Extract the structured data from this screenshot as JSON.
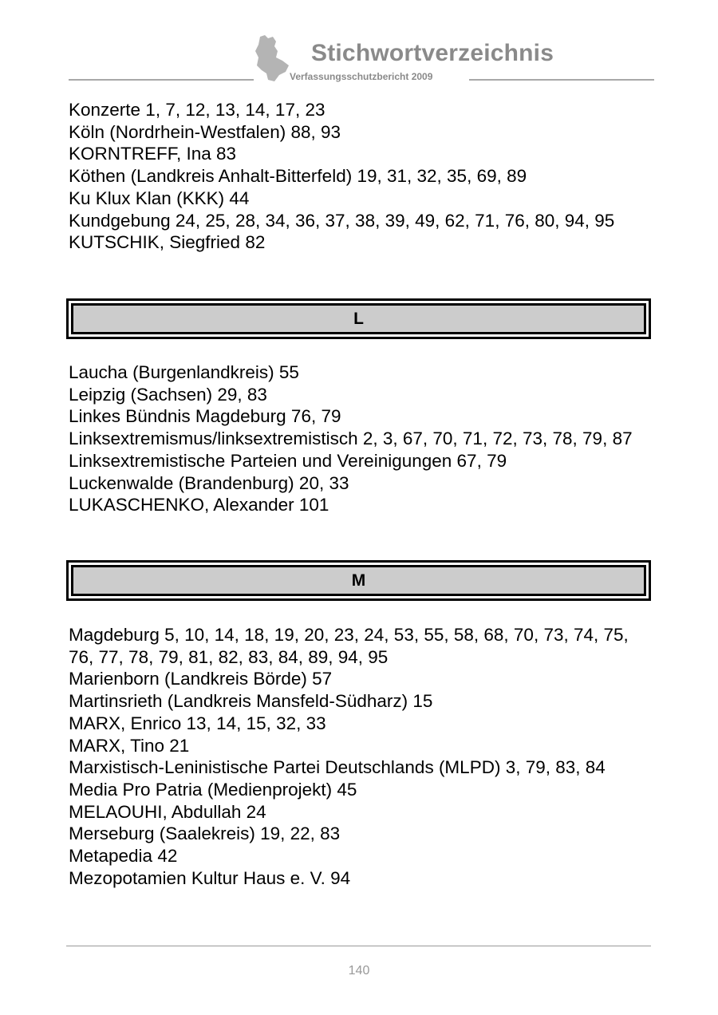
{
  "header": {
    "title": "Stichwortverzeichnis",
    "subtitle": "Verfassungsschutzbericht  2009"
  },
  "sections": [
    {
      "letter": "",
      "entries": [
        "Konzerte   1, 7, 12, 13, 14, 17, 23",
        "Köln (Nordrhein-Westfalen)   88, 93",
        "KORNTREFF, Ina   83",
        "Köthen (Landkreis Anhalt-Bitterfeld)   19, 31, 32, 35, 69, 89",
        "Ku Klux Klan (KKK)   44",
        "Kundgebung   24, 25, 28, 34, 36, 37, 38, 39, 49, 62, 71, 76, 80, 94, 95",
        "KUTSCHIK, Siegfried   82"
      ]
    },
    {
      "letter": "L",
      "entries": [
        "Laucha (Burgenlandkreis)   55",
        "Leipzig (Sachsen)   29, 83",
        "Linkes Bündnis Magdeburg   76, 79",
        "Linksextremismus/linksextremistisch   2, 3, 67, 70, 71, 72, 73, 78, 79, 87",
        "Linksextremistische Parteien und Vereinigungen   67, 79",
        "Luckenwalde (Brandenburg)   20, 33",
        "LUKASCHENKO, Alexander   101"
      ]
    },
    {
      "letter": "M",
      "entries": [
        "Magdeburg   5, 10, 14, 18, 19, 20, 23, 24, 53, 55, 58, 68, 70, 73, 74, 75, 76, 77, 78, 79, 81, 82, 83, 84, 89, 94, 95",
        "Marienborn (Landkreis Börde)   57",
        "Martinsrieth (Landkreis Mansfeld-Südharz)   15",
        "MARX, Enrico   13, 14, 15, 32, 33",
        "MARX, Tino   21",
        "Marxistisch-Leninistische Partei Deutschlands (MLPD)   3, 79, 83, 84",
        "Media Pro Patria (Medienprojekt)   45",
        "MELAOUHI, Abdullah   24",
        "Merseburg (Saalekreis)   19, 22, 83",
        "Metapedia   42",
        "Mezopotamien Kultur Haus e. V.   94"
      ]
    }
  ],
  "footer": {
    "page_number": "140"
  }
}
